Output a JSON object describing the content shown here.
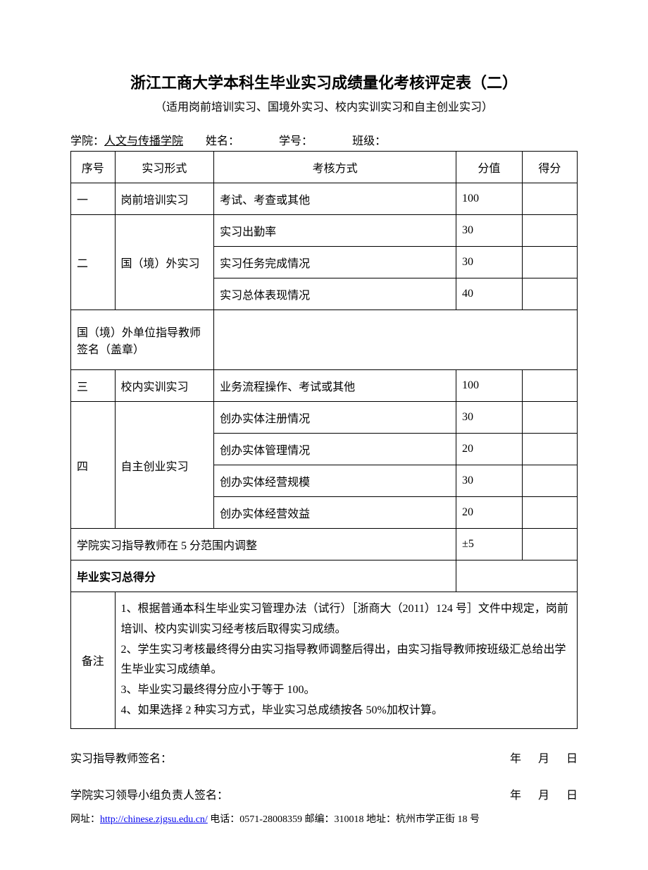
{
  "title": "浙江工商大学本科生毕业实习成绩量化考核评定表（二）",
  "subtitle": "（适用岗前培训实习、国境外实习、校内实训实习和自主创业实习）",
  "info": {
    "college_label": "学院：",
    "college_value": "人文与传播学院",
    "name_label": "姓名：",
    "id_label": "学号：",
    "class_label": "班级："
  },
  "headers": {
    "seq": "序号",
    "form": "实习形式",
    "method": "考核方式",
    "score": "分值",
    "get": "得分"
  },
  "row1": {
    "seq": "一",
    "form": "岗前培训实习",
    "method": "考试、考查或其他",
    "score": "100"
  },
  "row2": {
    "seq": "二",
    "form": "国（境）外实习",
    "m1": "实习出勤率",
    "s1": "30",
    "m2": "实习任务完成情况",
    "s2": "30",
    "m3": "实习总体表现情况",
    "s3": "40"
  },
  "sign_cell": "国（境）外单位指导教师签名（盖章）",
  "row3": {
    "seq": "三",
    "form": "校内实训实习",
    "method": "业务流程操作、考试或其他",
    "score": "100"
  },
  "row4": {
    "seq": "四",
    "form": "自主创业实习",
    "m1": "创办实体注册情况",
    "s1": "30",
    "m2": "创办实体管理情况",
    "s2": "20",
    "m3": "创办实体经营规模",
    "s3": "30",
    "m4": "创办实体经营效益",
    "s4": "20"
  },
  "adjust": {
    "label": "学院实习指导教师在 5 分范围内调整",
    "score": "±5"
  },
  "total": "毕业实习总得分",
  "notes_label": "备注",
  "notes": {
    "n1": "1、根据普通本科生毕业实习管理办法（试行）［浙商大（2011）124 号］文件中规定，岗前培训、校内实训实习经考核后取得实习成绩。",
    "n2": "2、学生实习考核最终得分由实习指导教师调整后得出，由实习指导教师按班级汇总给出学生毕业实习成绩单。",
    "n3": "3、毕业实习最终得分应小于等于 100。",
    "n4": "4、如果选择 2 种实习方式，毕业实习总成绩按各 50%加权计算。"
  },
  "sign1": {
    "label": "实习指导教师签名：",
    "date": "年      月      日"
  },
  "sign2": {
    "label": "学院实习领导小组负责人签名：",
    "date": "年      月      日"
  },
  "footer": {
    "url_label": "网址：",
    "url": "http://chinese.zjgsu.edu.cn/",
    "phone": "   电话：0571-28008359",
    "zip": " 邮编：310018",
    "addr": "     地址：杭州市学正街 18 号"
  }
}
